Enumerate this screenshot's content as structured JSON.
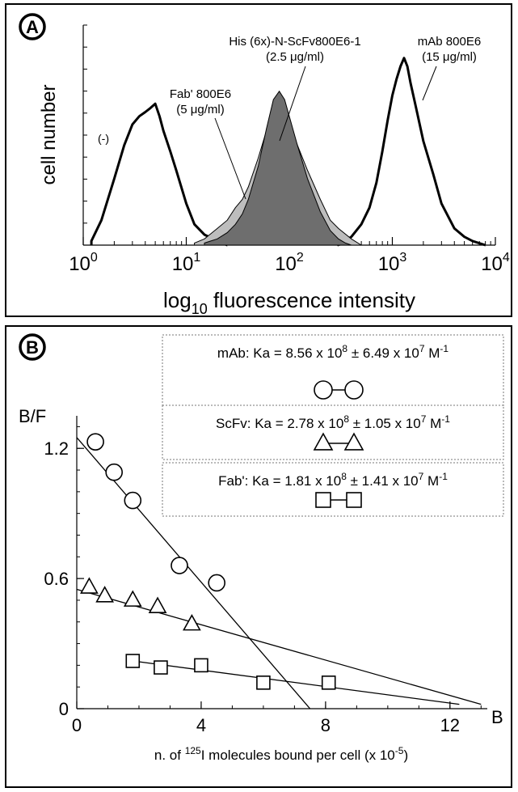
{
  "chart_data": [
    {
      "type": "area",
      "panel_label": "A",
      "xlabel_main": "log",
      "xlabel_sub": "10",
      "xlabel_rest": " fluorescence intensity",
      "ylabel": "cell number",
      "x_scale": "log",
      "xlim": [
        1,
        10000
      ],
      "x_ticks": [
        {
          "base": "10",
          "exp": "0",
          "value": 1
        },
        {
          "base": "10",
          "exp": "1",
          "value": 10
        },
        {
          "base": "10",
          "exp": "2",
          "value": 100
        },
        {
          "base": "10",
          "exp": "3",
          "value": 1000
        },
        {
          "base": "10",
          "exp": "4",
          "value": 10000
        }
      ],
      "ylim": [
        0,
        1
      ],
      "series": [
        {
          "style": "outline",
          "x": [
            1.2,
            1.5,
            2.0,
            2.5,
            3.0,
            3.5,
            4.0,
            4.5,
            5.0,
            5.5,
            6.0,
            7.0,
            8.0,
            10,
            12,
            15,
            20,
            25
          ],
          "values": [
            0.02,
            0.12,
            0.32,
            0.48,
            0.58,
            0.62,
            0.64,
            0.66,
            0.68,
            0.62,
            0.55,
            0.45,
            0.36,
            0.2,
            0.1,
            0.05,
            0.02,
            0.0
          ]
        },
        {
          "style": "light-fill",
          "x": [
            12,
            15,
            20,
            25,
            30,
            35,
            40,
            50,
            60,
            70,
            80,
            90,
            100,
            120,
            150,
            200,
            250,
            300,
            400,
            500
          ],
          "values": [
            0.01,
            0.03,
            0.08,
            0.12,
            0.18,
            0.22,
            0.28,
            0.42,
            0.55,
            0.64,
            0.66,
            0.64,
            0.58,
            0.48,
            0.36,
            0.22,
            0.12,
            0.08,
            0.03,
            0.0
          ]
        },
        {
          "style": "dark-fill",
          "x": [
            15,
            20,
            25,
            30,
            35,
            40,
            50,
            60,
            70,
            80,
            90,
            100,
            120,
            150,
            200,
            250,
            300,
            350,
            400
          ],
          "values": [
            0.01,
            0.03,
            0.06,
            0.1,
            0.15,
            0.22,
            0.38,
            0.56,
            0.7,
            0.74,
            0.7,
            0.62,
            0.48,
            0.32,
            0.16,
            0.07,
            0.03,
            0.01,
            0.0
          ]
        },
        {
          "style": "outline",
          "x": [
            300,
            400,
            500,
            600,
            700,
            800,
            900,
            1000,
            1100,
            1200,
            1300,
            1400,
            1500,
            1700,
            2000,
            2500,
            3000,
            4000,
            5000,
            6000,
            8000
          ],
          "values": [
            0.0,
            0.04,
            0.1,
            0.18,
            0.3,
            0.45,
            0.6,
            0.72,
            0.8,
            0.86,
            0.9,
            0.86,
            0.78,
            0.66,
            0.5,
            0.34,
            0.2,
            0.08,
            0.04,
            0.02,
            0.0
          ]
        }
      ],
      "annotations": [
        {
          "id": "neg",
          "lines": [
            "(-)"
          ]
        },
        {
          "id": "fab",
          "lines": [
            "Fab' 800E6",
            "(5 μg/ml)"
          ]
        },
        {
          "id": "his",
          "lines": [
            "His (6x)-N-ScFv800E6-1",
            "(2.5 μg/ml)"
          ]
        },
        {
          "id": "mab",
          "lines": [
            "mAb 800E6",
            "(15 μg/ml)"
          ]
        }
      ]
    },
    {
      "type": "scatter",
      "panel_label": "B",
      "ylabel": "B/F",
      "xlabel_corner": "B",
      "xlabel_parts": [
        "n. of ",
        "125",
        "I molecules bound per cell (x 10",
        "-5",
        ")"
      ],
      "xlim": [
        0,
        13.2
      ],
      "ylim": [
        0,
        1.35
      ],
      "x_ticks": [
        "0",
        "4",
        "8",
        "12"
      ],
      "x_tick_values": [
        0,
        4,
        8,
        12
      ],
      "y_ticks": [
        "0",
        "0.6",
        "1.2"
      ],
      "y_tick_values": [
        0,
        0.6,
        1.2
      ],
      "series": [
        {
          "marker": "circle",
          "x": [
            0.6,
            1.2,
            1.8,
            3.3,
            4.5
          ],
          "values": [
            1.23,
            1.09,
            0.96,
            0.66,
            0.58
          ],
          "fit": {
            "x": [
              0,
              7.5
            ],
            "y": [
              1.25,
              0.0
            ]
          },
          "legend": {
            "name": "mAb",
            "prefix": ": Ka = ",
            "mant1": "8.56",
            "exp1": "8",
            "pm": "6.49",
            "exp2": "7",
            "unit": "M",
            "unit_exp": "-1"
          }
        },
        {
          "marker": "triangle",
          "x": [
            0.4,
            0.9,
            1.8,
            2.6,
            3.7
          ],
          "values": [
            0.56,
            0.52,
            0.5,
            0.47,
            0.39
          ],
          "fit": {
            "x": [
              0,
              13
            ],
            "y": [
              0.55,
              0.02
            ]
          },
          "legend": {
            "name": "ScFv",
            "prefix": ": Ka = ",
            "mant1": "2.78",
            "exp1": "8",
            "pm": "1.05",
            "exp2": "7",
            "unit": "M",
            "unit_exp": "-1"
          }
        },
        {
          "marker": "square",
          "x": [
            1.8,
            2.7,
            4.0,
            6.0,
            8.1
          ],
          "values": [
            0.22,
            0.19,
            0.2,
            0.12,
            0.12
          ],
          "fit": {
            "x": [
              1.8,
              12.3
            ],
            "y": [
              0.22,
              0.02
            ]
          },
          "legend": {
            "name": "Fab'",
            "prefix": ": Ka = ",
            "mant1": "1.81",
            "exp1": "8",
            "pm": "1.41",
            "exp2": "7",
            "unit": "M",
            "unit_exp": "-1"
          }
        }
      ]
    }
  ]
}
